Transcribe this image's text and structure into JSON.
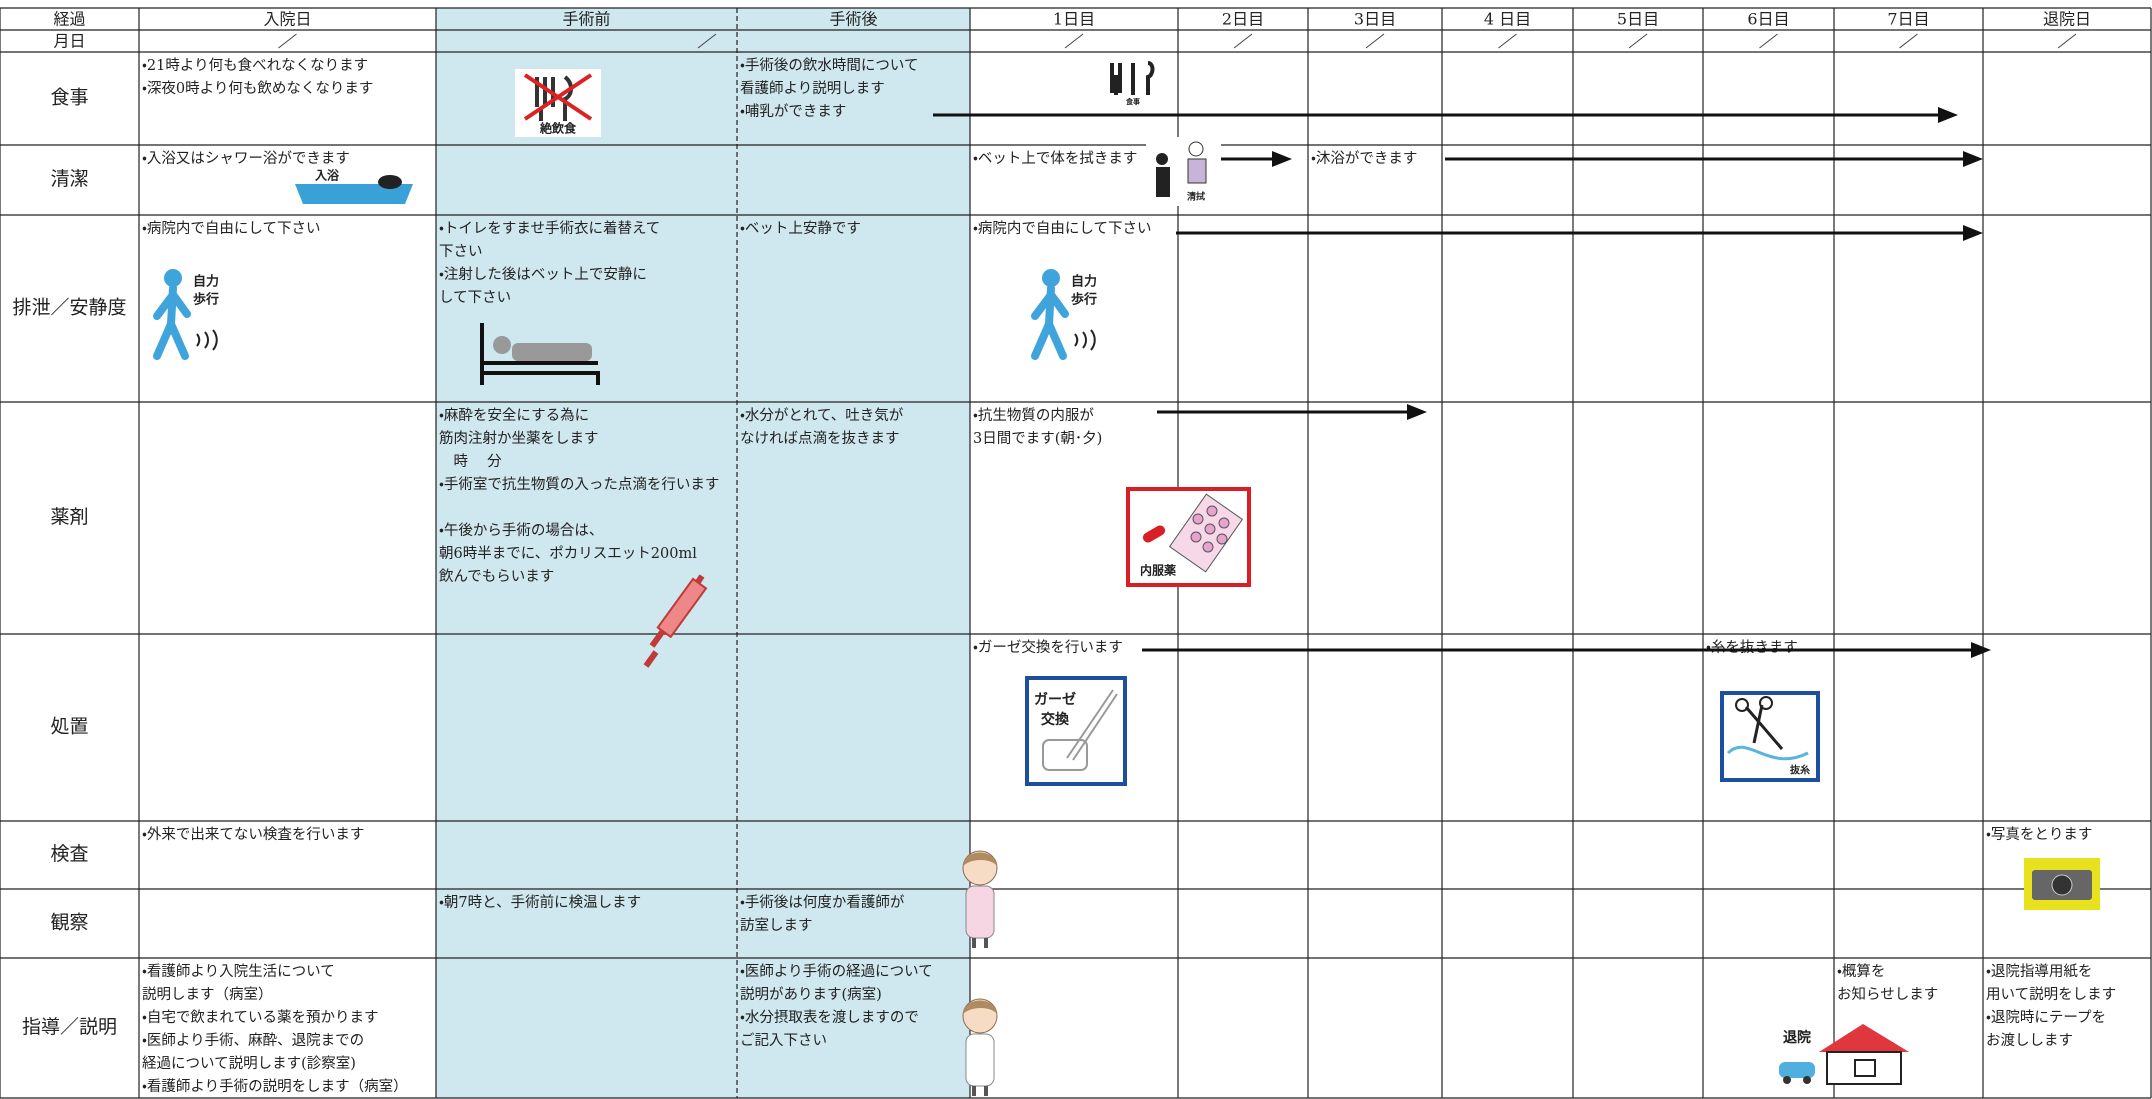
{
  "table": {
    "header": [
      "経過",
      "入院日",
      "手術前",
      "手術後",
      "1日目",
      "2日目",
      "3日目",
      "4 日目",
      "5日目",
      "6日目",
      "7日目",
      "退院日"
    ],
    "month_label": "月日",
    "rows": [
      {
        "label": "食事",
        "cells": [
          [
            "・21時より何も食べれなくなります",
            "・深夜0時より何も飲めなくなります"
          ],
          null,
          [
            "・手術後の飲水時間について",
            "看護師より説明します",
            "・哺乳ができます"
          ],
          null,
          null,
          null,
          null,
          null,
          null,
          null,
          null
        ]
      },
      {
        "label": "清潔",
        "cells": [
          [
            "・入浴又はシャワー浴ができます"
          ],
          null,
          null,
          [
            "・ベット上で体を拭きます"
          ],
          null,
          [
            "・沐浴ができます"
          ],
          null,
          null,
          null,
          null,
          null
        ]
      },
      {
        "label": "排泄／安静度",
        "cells": [
          [
            "・病院内で自由にして下さい"
          ],
          [
            "・トイレをすませ手術衣に着替えて",
            "下さい",
            "・注射した後はベット上で安静に",
            "して下さい"
          ],
          [
            "・ベット上安静です"
          ],
          [
            "・病院内で自由にして下さい"
          ],
          null,
          null,
          null,
          null,
          null,
          null,
          null
        ]
      },
      {
        "label": "薬剤",
        "cells": [
          null,
          [
            "・麻酔を安全にする為に",
            "筋肉注射か坐薬をします",
            "　時　 分",
            "・手術室で抗生物質の入った点滴を行います",
            null,
            "・午後から手術の場合は、",
            "朝6時半までに、ポカリスエット200ml",
            "飲んでもらいます"
          ],
          [
            "・水分がとれて、吐き気が",
            "なければ点滴を抜きます"
          ],
          [
            "・抗生物質の内服が",
            "3日間でます(朝･夕)"
          ],
          null,
          null,
          null,
          null,
          null,
          null,
          null
        ]
      },
      {
        "label": "処置",
        "cells": [
          null,
          null,
          null,
          [
            "・ガーゼ交換を行います"
          ],
          null,
          null,
          null,
          null,
          [
            "・糸を抜きます"
          ],
          null,
          null
        ]
      },
      {
        "label": "検査",
        "cells": [
          [
            "・外来で出来てない検査を行います"
          ],
          null,
          null,
          null,
          null,
          null,
          null,
          null,
          null,
          null,
          [
            "・写真をとります"
          ]
        ]
      },
      {
        "label": "観察",
        "cells": [
          null,
          [
            "・朝7時と、手術前に検温します"
          ],
          [
            "・手術後は何度か看護師が",
            "訪室します"
          ],
          null,
          null,
          null,
          null,
          null,
          null,
          null,
          null
        ]
      },
      {
        "label": "指導／説明",
        "cells": [
          [
            "・看護師より入院生活について",
            "説明します（病室）",
            "・自宅で飲まれている薬を預かります",
            "・医師より手術、麻酔、退院までの",
            "経過について説明します(診察室)",
            "・看護師より手術の説明をします（病室）"
          ],
          null,
          [
            "・医師より手術の経過について",
            "説明があります(病室)",
            "・水分摂取表を渡しますので",
            "ご記入下さい"
          ],
          null,
          null,
          null,
          null,
          null,
          null,
          [
            "・概算を",
            "お知らせします"
          ],
          [
            "・退院指導用紙を",
            "用いて説明をします",
            "・退院時にテープを",
            "お渡しします"
          ]
        ]
      }
    ],
    "icons": {
      "fasting": "絶飲食",
      "meal": "食事",
      "bath": "入浴",
      "wipe": "清拭",
      "walk": [
        "自力",
        "歩行"
      ],
      "medicine": "内服薬",
      "gauze": [
        "ガーゼ",
        "交換"
      ],
      "suture": "抜糸",
      "discharge": "退院"
    }
  }
}
